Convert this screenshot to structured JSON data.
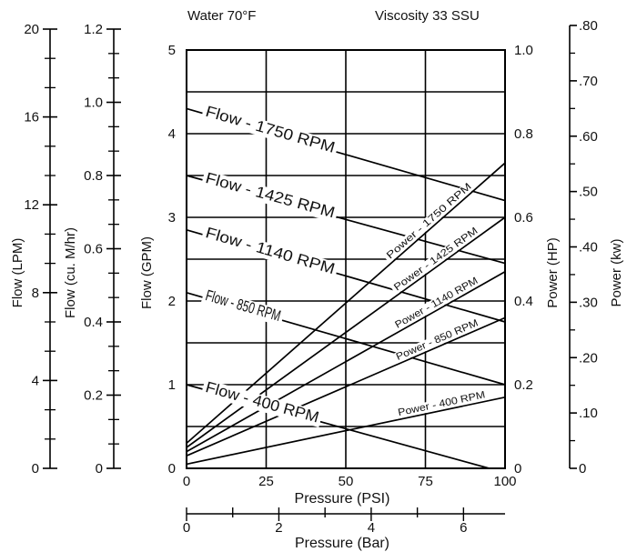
{
  "chart_data": {
    "type": "line",
    "header": {
      "left": "Water 70°F",
      "right": "Viscosity 33 SSU"
    },
    "xlabel": "Pressure (PSI)",
    "xlim": [
      0,
      100
    ],
    "x_ticks": [
      "0",
      "25",
      "50",
      "75",
      "100"
    ],
    "x2label": "Pressure (Bar)",
    "x2lim": [
      0,
      6.9
    ],
    "x2_ticks": [
      "0",
      "2",
      "4",
      "6"
    ],
    "left_axes": [
      {
        "label": "Flow (LPM)",
        "ticks": [
          "0",
          "4",
          "8",
          "12",
          "16",
          "20"
        ],
        "max": 20,
        "minor_per_major": 2
      },
      {
        "label": "Flow (cu. M/hr)",
        "ticks": [
          "0",
          "0.2",
          "0.4",
          "0.6",
          "0.8",
          "1.0",
          "1.2"
        ],
        "max": 1.2,
        "minor_per_major": 2
      },
      {
        "label": "Flow (GPM)",
        "ticks": [
          "0",
          "1",
          "2",
          "3",
          "4",
          "5"
        ],
        "max": 5,
        "minor_per_major": 0
      }
    ],
    "right_axes": [
      {
        "label": "Power (HP)",
        "ticks": [
          "0",
          "0.2",
          "0.4",
          "0.6",
          "0.8",
          "1.0"
        ],
        "max": 1.0,
        "minor_per_major": 0
      },
      {
        "label": "Power (kw)",
        "ticks": [
          "0",
          ".10",
          ".20",
          ".30",
          ".40",
          ".50",
          ".60",
          ".70",
          ".80"
        ],
        "max": 0.8,
        "minor_per_major": 1
      }
    ],
    "ylim_flow_gpm": [
      0,
      5
    ],
    "ylim_power_hp": [
      0,
      1.0
    ],
    "grid": true,
    "flow_series": [
      {
        "name": "Flow - 1750 RPM",
        "x": [
          0,
          100
        ],
        "y": [
          4.3,
          3.2
        ]
      },
      {
        "name": "Flow - 1425 RPM",
        "x": [
          0,
          100
        ],
        "y": [
          3.5,
          2.45
        ]
      },
      {
        "name": "Flow - 1140 RPM",
        "x": [
          0,
          100
        ],
        "y": [
          2.85,
          1.75
        ]
      },
      {
        "name": "Flow - 850 RPM",
        "x": [
          0,
          100
        ],
        "y": [
          2.1,
          1.0
        ]
      },
      {
        "name": "Flow - 400 RPM",
        "x": [
          0,
          95
        ],
        "y": [
          1.0,
          0.0
        ]
      }
    ],
    "power_series": [
      {
        "name": "Power - 1750 RPM",
        "x": [
          0,
          100
        ],
        "y": [
          0.06,
          0.73
        ]
      },
      {
        "name": "Power - 1425 RPM",
        "x": [
          0,
          100
        ],
        "y": [
          0.05,
          0.6
        ]
      },
      {
        "name": "Power - 1140 RPM",
        "x": [
          0,
          100
        ],
        "y": [
          0.04,
          0.47
        ]
      },
      {
        "name": "Power - 850 RPM",
        "x": [
          0,
          100
        ],
        "y": [
          0.03,
          0.36
        ]
      },
      {
        "name": "Power - 400 RPM",
        "x": [
          0,
          100
        ],
        "y": [
          0.01,
          0.17
        ]
      }
    ]
  }
}
